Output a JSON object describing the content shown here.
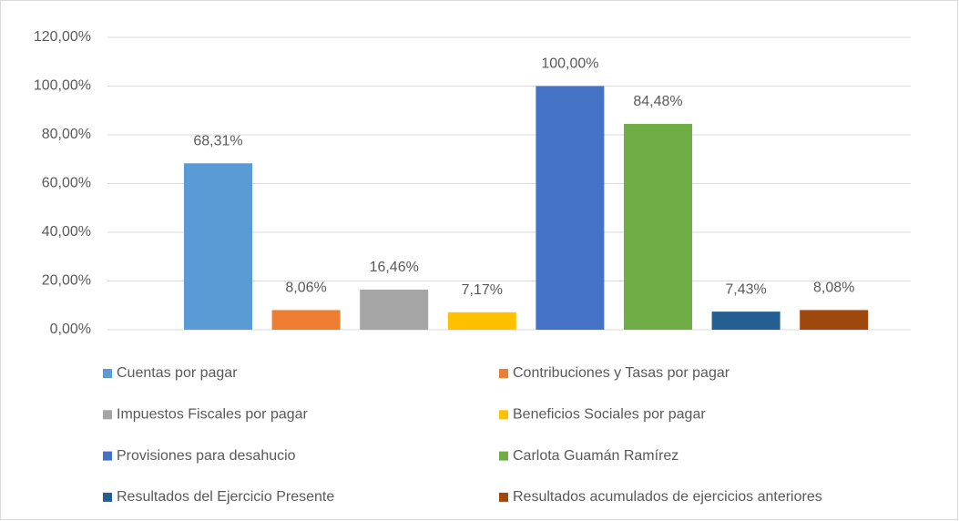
{
  "chart_data": {
    "type": "bar",
    "ylim": [
      0,
      120
    ],
    "yticks": [
      {
        "value": 0,
        "label": "0,00%"
      },
      {
        "value": 20,
        "label": "20,00%"
      },
      {
        "value": 40,
        "label": "40,00%"
      },
      {
        "value": 60,
        "label": "60,00%"
      },
      {
        "value": 80,
        "label": "80,00%"
      },
      {
        "value": 100,
        "label": "100,00%"
      },
      {
        "value": 120,
        "label": "120,00%"
      }
    ],
    "grid": true,
    "legend": "bottom",
    "series": [
      {
        "name": "Cuentas por pagar",
        "color": "#5b9bd5",
        "values": [
          68.31
        ],
        "value_labels": [
          "68,31%"
        ]
      },
      {
        "name": "Contribuciones y Tasas por pagar",
        "color": "#ed7d31",
        "values": [
          8.06
        ],
        "value_labels": [
          "8,06%"
        ]
      },
      {
        "name": "Impuestos Fiscales por pagar",
        "color": "#a5a5a5",
        "values": [
          16.46
        ],
        "value_labels": [
          "16,46%"
        ]
      },
      {
        "name": "Beneficios Sociales por pagar",
        "color": "#ffc000",
        "values": [
          7.17
        ],
        "value_labels": [
          "7,17%"
        ]
      },
      {
        "name": "Provisiones para desahucio",
        "color": "#4472c4",
        "values": [
          100.0
        ],
        "value_labels": [
          "100,00%"
        ]
      },
      {
        "name": "Carlota Guamán Ramírez",
        "color": "#70ad47",
        "values": [
          84.48
        ],
        "value_labels": [
          "84,48%"
        ]
      },
      {
        "name": "Resultados del Ejercicio Presente",
        "color": "#255e91",
        "values": [
          7.43
        ],
        "value_labels": [
          "7,43%"
        ]
      },
      {
        "name": "Resultados acumulados de ejercicios anteriores",
        "color": "#9e480e",
        "values": [
          8.08
        ],
        "value_labels": [
          "8,08%"
        ]
      }
    ]
  }
}
